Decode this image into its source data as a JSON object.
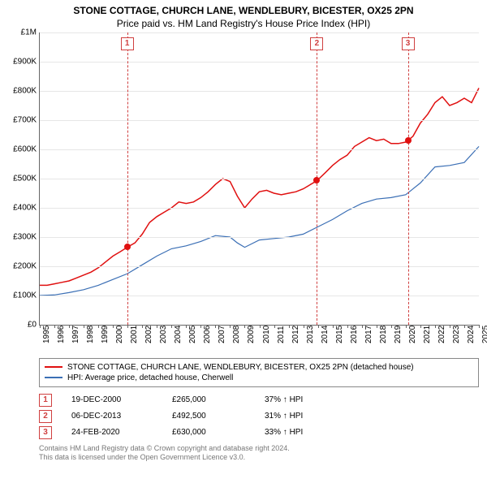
{
  "title": "STONE COTTAGE, CHURCH LANE, WENDLEBURY, BICESTER, OX25 2PN",
  "subtitle": "Price paid vs. HM Land Registry's House Price Index (HPI)",
  "chart": {
    "type": "line",
    "x_start_year": 1995,
    "x_end_year": 2025,
    "ylim": [
      0,
      1000000
    ],
    "ytick_step": 100000,
    "y_labels": [
      "£0",
      "£100K",
      "£200K",
      "£300K",
      "£400K",
      "£500K",
      "£600K",
      "£700K",
      "£800K",
      "£900K",
      "£1M"
    ],
    "x_labels": [
      "1995",
      "1996",
      "1997",
      "1998",
      "1999",
      "2000",
      "2001",
      "2002",
      "2003",
      "2004",
      "2005",
      "2006",
      "2007",
      "2008",
      "2009",
      "2010",
      "2011",
      "2012",
      "2013",
      "2014",
      "2015",
      "2016",
      "2017",
      "2018",
      "2019",
      "2020",
      "2021",
      "2022",
      "2023",
      "2024",
      "2025"
    ],
    "grid_color": "#e6e6e6",
    "background_color": "#ffffff",
    "series": [
      {
        "name": "stone-cottage",
        "label": "STONE COTTAGE, CHURCH LANE, WENDLEBURY, BICESTER, OX25 2PN (detached house)",
        "color": "#e01010",
        "line_width": 1.5,
        "data": [
          [
            1995.0,
            135000
          ],
          [
            1995.5,
            135000
          ],
          [
            1996.0,
            140000
          ],
          [
            1996.5,
            145000
          ],
          [
            1997.0,
            150000
          ],
          [
            1997.5,
            160000
          ],
          [
            1998.0,
            170000
          ],
          [
            1998.5,
            180000
          ],
          [
            1999.0,
            195000
          ],
          [
            1999.5,
            215000
          ],
          [
            2000.0,
            235000
          ],
          [
            2000.5,
            250000
          ],
          [
            2000.97,
            265000
          ],
          [
            2001.5,
            280000
          ],
          [
            2002.0,
            310000
          ],
          [
            2002.5,
            350000
          ],
          [
            2003.0,
            370000
          ],
          [
            2003.5,
            385000
          ],
          [
            2004.0,
            400000
          ],
          [
            2004.5,
            420000
          ],
          [
            2005.0,
            415000
          ],
          [
            2005.5,
            420000
          ],
          [
            2006.0,
            435000
          ],
          [
            2006.5,
            455000
          ],
          [
            2007.0,
            480000
          ],
          [
            2007.5,
            500000
          ],
          [
            2008.0,
            490000
          ],
          [
            2008.5,
            440000
          ],
          [
            2009.0,
            400000
          ],
          [
            2009.5,
            430000
          ],
          [
            2010.0,
            455000
          ],
          [
            2010.5,
            460000
          ],
          [
            2011.0,
            450000
          ],
          [
            2011.5,
            445000
          ],
          [
            2012.0,
            450000
          ],
          [
            2012.5,
            455000
          ],
          [
            2013.0,
            465000
          ],
          [
            2013.5,
            480000
          ],
          [
            2013.93,
            492500
          ],
          [
            2014.5,
            520000
          ],
          [
            2015.0,
            545000
          ],
          [
            2015.5,
            565000
          ],
          [
            2016.0,
            580000
          ],
          [
            2016.5,
            610000
          ],
          [
            2017.0,
            625000
          ],
          [
            2017.5,
            640000
          ],
          [
            2018.0,
            630000
          ],
          [
            2018.5,
            635000
          ],
          [
            2019.0,
            620000
          ],
          [
            2019.5,
            620000
          ],
          [
            2020.0,
            625000
          ],
          [
            2020.15,
            630000
          ],
          [
            2020.5,
            645000
          ],
          [
            2021.0,
            690000
          ],
          [
            2021.5,
            720000
          ],
          [
            2022.0,
            760000
          ],
          [
            2022.5,
            780000
          ],
          [
            2023.0,
            750000
          ],
          [
            2023.5,
            760000
          ],
          [
            2024.0,
            775000
          ],
          [
            2024.5,
            760000
          ],
          [
            2025.0,
            810000
          ]
        ]
      },
      {
        "name": "hpi-cherwell",
        "label": "HPI: Average price, detached house, Cherwell",
        "color": "#3b6fb5",
        "line_width": 1.2,
        "data": [
          [
            1995.0,
            100000
          ],
          [
            1996.0,
            102000
          ],
          [
            1997.0,
            110000
          ],
          [
            1998.0,
            120000
          ],
          [
            1999.0,
            135000
          ],
          [
            2000.0,
            155000
          ],
          [
            2001.0,
            175000
          ],
          [
            2002.0,
            205000
          ],
          [
            2003.0,
            235000
          ],
          [
            2004.0,
            260000
          ],
          [
            2005.0,
            270000
          ],
          [
            2006.0,
            285000
          ],
          [
            2007.0,
            305000
          ],
          [
            2008.0,
            300000
          ],
          [
            2008.5,
            280000
          ],
          [
            2009.0,
            265000
          ],
          [
            2010.0,
            290000
          ],
          [
            2011.0,
            295000
          ],
          [
            2012.0,
            300000
          ],
          [
            2013.0,
            310000
          ],
          [
            2014.0,
            335000
          ],
          [
            2015.0,
            360000
          ],
          [
            2016.0,
            390000
          ],
          [
            2017.0,
            415000
          ],
          [
            2018.0,
            430000
          ],
          [
            2019.0,
            435000
          ],
          [
            2020.0,
            445000
          ],
          [
            2021.0,
            485000
          ],
          [
            2022.0,
            540000
          ],
          [
            2023.0,
            545000
          ],
          [
            2024.0,
            555000
          ],
          [
            2025.0,
            610000
          ]
        ]
      }
    ],
    "markers": [
      {
        "num": "1",
        "year": 2000.97,
        "price": 265000,
        "color": "#e01010"
      },
      {
        "num": "2",
        "year": 2013.93,
        "price": 492500,
        "color": "#e01010"
      },
      {
        "num": "3",
        "year": 2020.15,
        "price": 630000,
        "color": "#e01010"
      }
    ],
    "vline_color": "#d04040"
  },
  "legend": {
    "items": [
      {
        "color": "#e01010",
        "label": "STONE COTTAGE, CHURCH LANE, WENDLEBURY, BICESTER, OX25 2PN (detached house)"
      },
      {
        "color": "#3b6fb5",
        "label": "HPI: Average price, detached house, Cherwell"
      }
    ]
  },
  "events": [
    {
      "num": "1",
      "date": "19-DEC-2000",
      "price": "£265,000",
      "delta": "37% ↑ HPI"
    },
    {
      "num": "2",
      "date": "06-DEC-2013",
      "price": "£492,500",
      "delta": "31% ↑ HPI"
    },
    {
      "num": "3",
      "date": "24-FEB-2020",
      "price": "£630,000",
      "delta": "33% ↑ HPI"
    }
  ],
  "footer": {
    "line1": "Contains HM Land Registry data © Crown copyright and database right 2024.",
    "line2": "This data is licensed under the Open Government Licence v3.0."
  }
}
